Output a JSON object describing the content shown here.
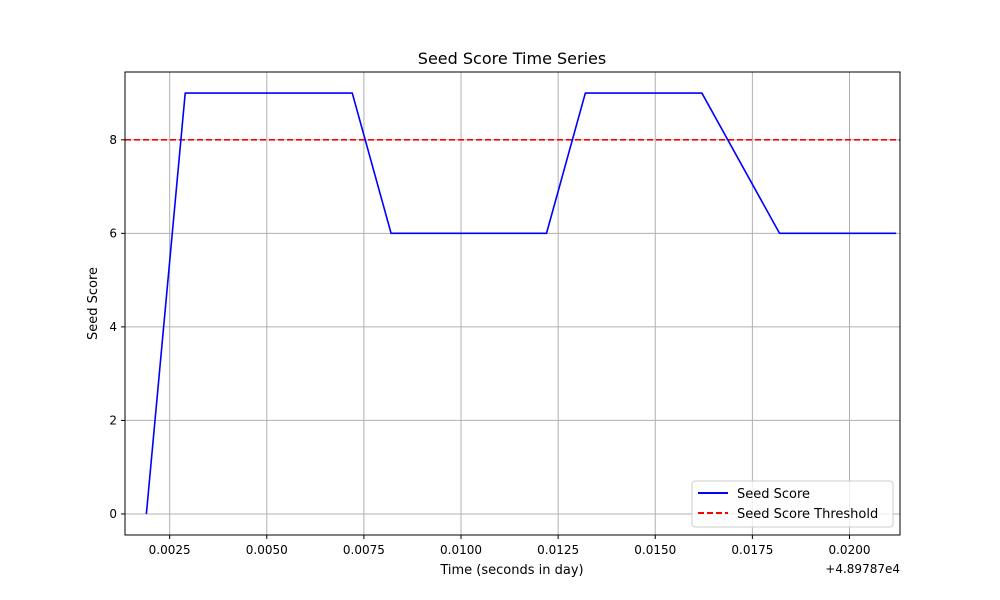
{
  "chart_data": {
    "type": "line",
    "title": "Seed Score Time Series",
    "xlabel": "Time (seconds in day)",
    "ylabel": "Seed Score",
    "x_offset_label": "+4.89787e4",
    "xlim": [
      0.00135,
      0.0213
    ],
    "ylim": [
      -0.45,
      9.45
    ],
    "x_ticks": [
      0.0025,
      0.005,
      0.0075,
      0.01,
      0.0125,
      0.015,
      0.0175,
      0.02
    ],
    "x_tick_labels": [
      "0.0025",
      "0.0050",
      "0.0075",
      "0.0100",
      "0.0125",
      "0.0150",
      "0.0175",
      "0.0200"
    ],
    "y_ticks": [
      0,
      2,
      4,
      6,
      8
    ],
    "y_tick_labels": [
      "0",
      "2",
      "4",
      "6",
      "8"
    ],
    "grid": true,
    "legend_position": "bottom-right",
    "series": [
      {
        "name": "Seed Score",
        "color": "#0000ff",
        "style": "solid",
        "x": [
          0.0019,
          0.0029,
          0.0072,
          0.0082,
          0.0122,
          0.0132,
          0.0162,
          0.0182,
          0.0212
        ],
        "y": [
          0,
          9,
          9,
          6,
          6,
          9,
          9,
          6,
          6
        ]
      }
    ],
    "reference_lines": [
      {
        "name": "Seed Score Threshold",
        "color": "#ff0000",
        "style": "dashed",
        "y": 8
      }
    ]
  }
}
